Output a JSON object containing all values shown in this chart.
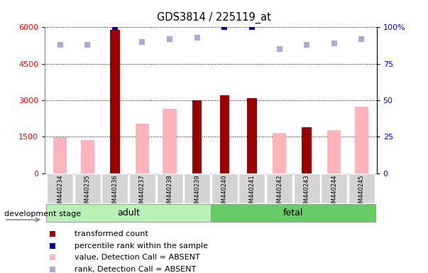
{
  "title": "GDS3814 / 225119_at",
  "categories": [
    "GSM440234",
    "GSM440235",
    "GSM440236",
    "GSM440237",
    "GSM440238",
    "GSM440239",
    "GSM440240",
    "GSM440241",
    "GSM440242",
    "GSM440243",
    "GSM440244",
    "GSM440245"
  ],
  "transformed_count": [
    null,
    null,
    5900,
    null,
    null,
    3000,
    3200,
    3100,
    null,
    1900,
    null,
    null
  ],
  "value_absent": [
    1480,
    1380,
    null,
    2050,
    2650,
    null,
    null,
    null,
    1650,
    null,
    1780,
    2750
  ],
  "percentile_rank": [
    null,
    null,
    100,
    null,
    null,
    null,
    100,
    100,
    null,
    null,
    null,
    null
  ],
  "rank_absent": [
    88,
    88,
    null,
    90,
    92,
    93,
    null,
    null,
    85,
    88,
    89,
    92
  ],
  "ylim_left": [
    0,
    6000
  ],
  "ylim_right": [
    0,
    100
  ],
  "yticks_left": [
    0,
    1500,
    3000,
    4500,
    6000
  ],
  "yticks_right": [
    0,
    25,
    50,
    75,
    100
  ],
  "dark_red": "#990000",
  "pink": "#FFB3BA",
  "blue": "#000099",
  "light_blue": "#AAAADD",
  "adult_light": "#B8F0B8",
  "fetal_green": "#66CC66",
  "bg_gray": "#D4D4D4"
}
